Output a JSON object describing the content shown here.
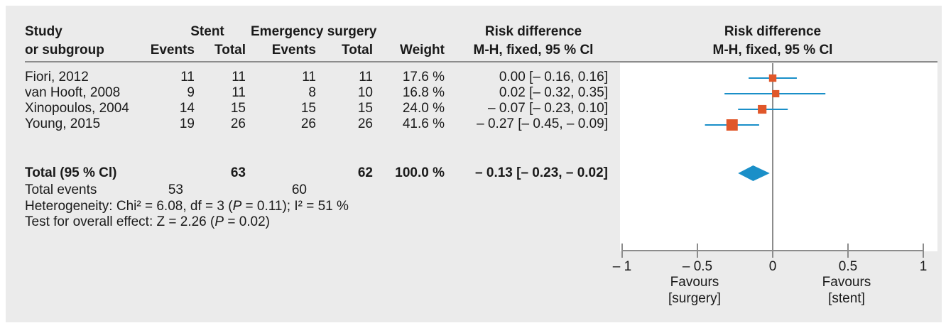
{
  "headers": {
    "study_line1": "Study",
    "study_line2": "or subgroup",
    "stent": "Stent",
    "stent_events": "Events",
    "stent_total": "Total",
    "surgery": "Emergency surgery",
    "surgery_events": "Events",
    "surgery_total": "Total",
    "weight": "Weight",
    "rd_line1": "Risk difference",
    "rd_line2": "M-H, fixed, 95 % Cl",
    "plot_line1": "Risk difference",
    "plot_line2": "M-H, fixed, 95 % Cl"
  },
  "rows": [
    {
      "study": "Fiori, 2012",
      "stent_events": "11",
      "stent_total": "11",
      "surg_events": "11",
      "surg_total": "11",
      "weight": "17.6 %",
      "ci": "0.00 [– 0.16, 0.16]"
    },
    {
      "study": "van Hooft, 2008",
      "stent_events": "9",
      "stent_total": "11",
      "surg_events": "8",
      "surg_total": "10",
      "weight": "16.8 %",
      "ci": "0.02 [– 0.32, 0.35]"
    },
    {
      "study": "Xinopoulos, 2004",
      "stent_events": "14",
      "stent_total": "15",
      "surg_events": "15",
      "surg_total": "15",
      "weight": "24.0 %",
      "ci": "– 0.07 [– 0.23, 0.10]"
    },
    {
      "study": "Young, 2015",
      "stent_events": "19",
      "stent_total": "26",
      "surg_events": "26",
      "surg_total": "26",
      "weight": "41.6 %",
      "ci": "– 0.27 [– 0.45, – 0.09]"
    }
  ],
  "total": {
    "label": "Total (95 % Cl)",
    "stent_total": "63",
    "surg_total": "62",
    "weight": "100.0 %",
    "ci": "– 0.13 [– 0.23, – 0.02]"
  },
  "total_events": {
    "label": "Total events",
    "stent": "53",
    "surgery": "60"
  },
  "heterogeneity": {
    "prefix": "Heterogeneity: Chi² = 6.08, df = 3 (",
    "p": "P",
    "suffix": " = 0.11); I² = 51 %"
  },
  "overall_effect": {
    "prefix": "Test for overall effect: Z = 2.26 (",
    "p": "P",
    "suffix": " = 0.02)"
  },
  "axis": {
    "tick_labels": [
      "– 1",
      "– 0.5",
      "0",
      "0.5",
      "1"
    ],
    "favours_left_1": "Favours",
    "favours_left_2": "[surgery]",
    "favours_right_1": "Favours",
    "favours_right_2": "[stent]"
  },
  "colors": {
    "ci_line": "#1a8fc8",
    "square": "#e0572a",
    "diamond": "#1a8fc8",
    "axis": "#8c8c8c"
  },
  "chart_data": {
    "type": "forest",
    "xlim": [
      -1,
      1
    ],
    "ticks": [
      -1,
      -0.5,
      0,
      0.5,
      1
    ],
    "studies": [
      {
        "name": "Fiori, 2012",
        "estimate": 0.0,
        "lower": -0.16,
        "upper": 0.16,
        "weight": 17.6
      },
      {
        "name": "van Hooft, 2008",
        "estimate": 0.02,
        "lower": -0.32,
        "upper": 0.35,
        "weight": 16.8
      },
      {
        "name": "Xinopoulos, 2004",
        "estimate": -0.07,
        "lower": -0.23,
        "upper": 0.1,
        "weight": 24.0
      },
      {
        "name": "Young, 2015",
        "estimate": -0.27,
        "lower": -0.45,
        "upper": -0.09,
        "weight": 41.6
      }
    ],
    "pooled": {
      "estimate": -0.13,
      "lower": -0.23,
      "upper": -0.02
    }
  }
}
